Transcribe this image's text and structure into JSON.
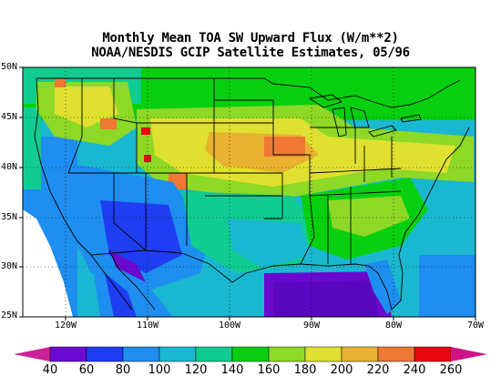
{
  "title": {
    "line1": "Monthly Mean TOA SW Upward Flux (W/m**2)",
    "line2": "NOAA/NESDIS GCIP Satellite Estimates, 05/96"
  },
  "axes": {
    "lat_ticks": [
      "50N",
      "45N",
      "40N",
      "35N",
      "30N",
      "25N"
    ],
    "lon_ticks": [
      "120W",
      "110W",
      "100W",
      "90W",
      "80W",
      "70W"
    ],
    "lat_range": [
      25,
      50
    ],
    "lon_range": [
      -125,
      -70
    ]
  },
  "colorbar": {
    "labels": [
      "40",
      "60",
      "80",
      "100",
      "120",
      "140",
      "160",
      "180",
      "200",
      "220",
      "240",
      "260"
    ],
    "colors": [
      "#cc2299",
      "#6a0ad0",
      "#1f3ef2",
      "#1e8ef0",
      "#1ab8d0",
      "#10cc90",
      "#08d010",
      "#8ed826",
      "#e0e030",
      "#e8b230",
      "#ee7834",
      "#e80810",
      "#d01488"
    ]
  }
}
